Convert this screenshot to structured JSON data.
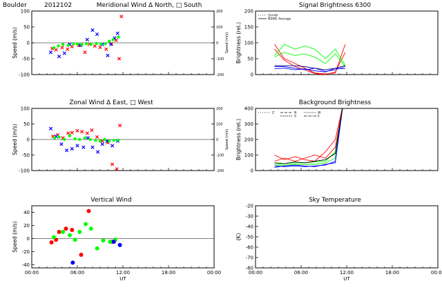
{
  "header": {
    "location": "Boulder",
    "date_code": "2012102"
  },
  "chart_data": [
    {
      "id": "meridional",
      "type": "scatter",
      "title": "Meridional Wind  ∆ North, □ South",
      "ylabel": "Speed (m/s)",
      "y2label": "Speed (m/s)",
      "ylim": [
        -100,
        100
      ],
      "yticks": [
        -100,
        -50,
        0,
        50,
        100
      ],
      "y2lim": [
        -200,
        200
      ],
      "y2ticks": [
        -200,
        -100,
        0,
        100,
        200
      ],
      "xlim": [
        0,
        24
      ],
      "xticks": [],
      "series": [
        {
          "color": "#ff0000",
          "marker": "cross",
          "points": [
            [
              2.7,
              -18
            ],
            [
              3.2,
              -22
            ],
            [
              4.0,
              -15
            ],
            [
              4.7,
              -20
            ],
            [
              5.3,
              -12
            ],
            [
              6.2,
              -8
            ],
            [
              7.0,
              -30
            ],
            [
              7.6,
              -5
            ],
            [
              8.3,
              -10
            ],
            [
              9.0,
              -14
            ],
            [
              9.8,
              -20
            ],
            [
              10.5,
              -3
            ],
            [
              11.1,
              8
            ],
            [
              11.5,
              -50
            ],
            [
              11.8,
              83
            ]
          ]
        },
        {
          "color": "#0000ff",
          "marker": "cross",
          "points": [
            [
              2.5,
              -30
            ],
            [
              3.6,
              -43
            ],
            [
              4.3,
              -33
            ],
            [
              5.0,
              -5
            ],
            [
              6.4,
              -8
            ],
            [
              7.3,
              10
            ],
            [
              8.0,
              40
            ],
            [
              8.6,
              27
            ],
            [
              9.3,
              -5
            ],
            [
              10.0,
              -40
            ],
            [
              10.4,
              -5
            ],
            [
              10.9,
              15
            ],
            [
              11.3,
              30
            ]
          ]
        },
        {
          "color": "#00ff00",
          "marker": "dot",
          "points": [
            [
              2.9,
              -15
            ],
            [
              3.5,
              -10
            ],
            [
              4.1,
              -5
            ],
            [
              4.8,
              -8
            ],
            [
              5.5,
              -3
            ],
            [
              6.0,
              -4
            ],
            [
              6.6,
              -6
            ],
            [
              7.2,
              -3
            ],
            [
              7.8,
              -5
            ],
            [
              8.5,
              -2
            ],
            [
              9.1,
              -4
            ],
            [
              9.7,
              -3
            ],
            [
              10.2,
              5
            ],
            [
              10.7,
              10
            ],
            [
              11.4,
              18
            ]
          ]
        }
      ]
    },
    {
      "id": "zonal",
      "type": "scatter",
      "title": "Zonal Wind     ∆ East, □ West",
      "ylabel": "Speed (m/s)",
      "y2label": "Speed (m/s)",
      "ylim": [
        -100,
        100
      ],
      "yticks": [
        -100,
        -50,
        0,
        50,
        100
      ],
      "y2lim": [
        -200,
        200
      ],
      "y2ticks": [
        -200,
        -100,
        0,
        100,
        200
      ],
      "xlim": [
        0,
        24
      ],
      "xticks": [],
      "series": [
        {
          "color": "#ff0000",
          "marker": "cross",
          "points": [
            [
              2.8,
              10
            ],
            [
              3.4,
              15
            ],
            [
              4.1,
              5
            ],
            [
              4.8,
              20
            ],
            [
              5.3,
              22
            ],
            [
              6.0,
              28
            ],
            [
              6.6,
              25
            ],
            [
              7.3,
              20
            ],
            [
              7.9,
              30
            ],
            [
              8.6,
              8
            ],
            [
              9.3,
              -5
            ],
            [
              10.0,
              -10
            ],
            [
              10.6,
              -80
            ],
            [
              11.2,
              -95
            ],
            [
              11.6,
              45
            ]
          ]
        },
        {
          "color": "#0000ff",
          "marker": "cross",
          "points": [
            [
              2.5,
              35
            ],
            [
              3.2,
              10
            ],
            [
              3.9,
              -15
            ],
            [
              4.6,
              -35
            ],
            [
              5.3,
              -30
            ],
            [
              6.0,
              -20
            ],
            [
              6.8,
              -25
            ],
            [
              7.4,
              5
            ],
            [
              8.0,
              -25
            ],
            [
              8.7,
              -40
            ],
            [
              9.3,
              -15
            ],
            [
              9.9,
              -5
            ],
            [
              10.6,
              -20
            ],
            [
              11.3,
              -5
            ]
          ]
        },
        {
          "color": "#00ff00",
          "marker": "dot",
          "points": [
            [
              3.0,
              5
            ],
            [
              3.6,
              8
            ],
            [
              4.3,
              0
            ],
            [
              5.0,
              12
            ],
            [
              5.7,
              2
            ],
            [
              6.3,
              0
            ],
            [
              7.0,
              5
            ],
            [
              7.7,
              0
            ],
            [
              8.4,
              -3
            ],
            [
              9.0,
              -5
            ],
            [
              9.6,
              0
            ],
            [
              10.2,
              -5
            ],
            [
              10.8,
              -3
            ],
            [
              11.4,
              -2
            ]
          ]
        }
      ]
    },
    {
      "id": "vertical",
      "type": "scatter",
      "title": "Vertical Wind",
      "ylabel": "Speed (m/s)",
      "ylim": [
        -45,
        50
      ],
      "yticks": [
        -40,
        -20,
        0,
        20,
        40
      ],
      "xlim": [
        0,
        24
      ],
      "xticks": [
        "00:00",
        "06:00",
        "12:00",
        "18:00",
        "00:00"
      ],
      "xlabel": "UT",
      "series": [
        {
          "color": "#ff0000",
          "marker": "dot",
          "points": [
            [
              2.6,
              -6
            ],
            [
              3.2,
              -2
            ],
            [
              3.6,
              10
            ],
            [
              4.5,
              15
            ],
            [
              5.3,
              13
            ],
            [
              6.5,
              -25
            ],
            [
              7.5,
              42
            ],
            [
              10.6,
              -5
            ]
          ]
        },
        {
          "color": "#00ff00",
          "marker": "dot",
          "points": [
            [
              2.9,
              2
            ],
            [
              4.1,
              10
            ],
            [
              5.0,
              5
            ],
            [
              5.7,
              -2
            ],
            [
              6.3,
              10
            ],
            [
              7.1,
              22
            ],
            [
              7.8,
              15
            ],
            [
              8.6,
              -15
            ],
            [
              9.4,
              -3
            ],
            [
              10.3,
              -5
            ],
            [
              11.0,
              -2
            ]
          ]
        },
        {
          "color": "#0000ff",
          "marker": "dot",
          "points": [
            [
              5.4,
              -37
            ],
            [
              10.8,
              -5
            ],
            [
              11.6,
              -10
            ]
          ]
        }
      ]
    },
    {
      "id": "signal",
      "type": "line",
      "title": "Signal Brightness       6300",
      "ylabel": "Brightness (rel.)",
      "ylim": [
        0,
        200
      ],
      "yticks": [
        0,
        50,
        100,
        150,
        200
      ],
      "xlim": [
        0,
        24
      ],
      "xticks": [],
      "legend": [
        "Zenith",
        "NSWE Average"
      ],
      "series": [
        {
          "color": "#ff0000",
          "points": [
            [
              2.5,
              95
            ],
            [
              3.8,
              50
            ],
            [
              5.2,
              35
            ],
            [
              6.5,
              20
            ],
            [
              7.8,
              5
            ],
            [
              9.2,
              2
            ],
            [
              10.5,
              5
            ],
            [
              11.8,
              95
            ]
          ]
        },
        {
          "color": "#ff0000",
          "points": [
            [
              2.5,
              80
            ],
            [
              3.8,
              45
            ],
            [
              5.2,
              25
            ],
            [
              6.5,
              15
            ],
            [
              7.8,
              3
            ],
            [
              9.2,
              0
            ],
            [
              10.5,
              8
            ],
            [
              11.8,
              70
            ]
          ]
        },
        {
          "color": "#00ff00",
          "points": [
            [
              2.5,
              60
            ],
            [
              3.8,
              95
            ],
            [
              5.2,
              80
            ],
            [
              6.5,
              90
            ],
            [
              7.8,
              80
            ],
            [
              9.2,
              50
            ],
            [
              10.5,
              80
            ],
            [
              11.8,
              30
            ]
          ]
        },
        {
          "color": "#00ff00",
          "points": [
            [
              2.5,
              55
            ],
            [
              3.8,
              70
            ],
            [
              5.2,
              60
            ],
            [
              6.5,
              65
            ],
            [
              7.8,
              55
            ],
            [
              9.2,
              35
            ],
            [
              10.5,
              65
            ],
            [
              11.8,
              25
            ]
          ]
        },
        {
          "color": "#0000ff",
          "points": [
            [
              2.5,
              25
            ],
            [
              3.8,
              25
            ],
            [
              5.2,
              20
            ],
            [
              6.5,
              15
            ],
            [
              7.8,
              20
            ],
            [
              9.2,
              10
            ],
            [
              10.5,
              15
            ],
            [
              11.8,
              25
            ]
          ]
        },
        {
          "color": "#0000ff",
          "points": [
            [
              2.5,
              18
            ],
            [
              3.8,
              20
            ],
            [
              5.2,
              15
            ],
            [
              6.5,
              18
            ],
            [
              7.8,
              12
            ],
            [
              9.2,
              8
            ],
            [
              10.5,
              20
            ],
            [
              11.8,
              18
            ]
          ]
        },
        {
          "color": "#000080",
          "points": [
            [
              2.5,
              28
            ],
            [
              3.8,
              28
            ],
            [
              5.2,
              28
            ],
            [
              6.5,
              25
            ],
            [
              7.8,
              20
            ],
            [
              9.2,
              15
            ],
            [
              10.5,
              20
            ],
            [
              11.8,
              28
            ]
          ]
        }
      ]
    },
    {
      "id": "background",
      "type": "line",
      "title": "Background Brightness",
      "ylabel": "Brightness (rel.)",
      "ylim": [
        0,
        400
      ],
      "yticks": [
        0,
        100,
        200,
        300,
        400
      ],
      "xlim": [
        0,
        24
      ],
      "xticks": [],
      "legend": [
        "Z",
        "N",
        "S",
        "W",
        "E"
      ],
      "series": [
        {
          "color": "#ff0000",
          "points": [
            [
              2.5,
              100
            ],
            [
              3.8,
              70
            ],
            [
              5.2,
              90
            ],
            [
              6.5,
              70
            ],
            [
              7.8,
              60
            ],
            [
              9.2,
              120
            ],
            [
              10.5,
              200
            ],
            [
              11.5,
              420
            ]
          ]
        },
        {
          "color": "#ff0000",
          "points": [
            [
              2.5,
              60
            ],
            [
              3.8,
              80
            ],
            [
              5.2,
              60
            ],
            [
              6.5,
              80
            ],
            [
              7.8,
              100
            ],
            [
              9.2,
              80
            ],
            [
              10.5,
              150
            ],
            [
              11.5,
              420
            ]
          ]
        },
        {
          "color": "#00ff00",
          "points": [
            [
              2.5,
              40
            ],
            [
              3.8,
              45
            ],
            [
              5.2,
              50
            ],
            [
              6.5,
              50
            ],
            [
              7.8,
              55
            ],
            [
              9.2,
              60
            ],
            [
              10.5,
              120
            ],
            [
              11.5,
              420
            ]
          ]
        },
        {
          "color": "#00ff00",
          "points": [
            [
              2.5,
              30
            ],
            [
              3.8,
              35
            ],
            [
              5.2,
              40
            ],
            [
              6.5,
              40
            ],
            [
              7.8,
              40
            ],
            [
              9.2,
              50
            ],
            [
              10.5,
              80
            ],
            [
              11.5,
              420
            ]
          ]
        },
        {
          "color": "#0000ff",
          "points": [
            [
              2.5,
              30
            ],
            [
              3.8,
              25
            ],
            [
              5.2,
              30
            ],
            [
              6.5,
              25
            ],
            [
              7.8,
              30
            ],
            [
              9.2,
              35
            ],
            [
              10.5,
              60
            ],
            [
              11.5,
              420
            ]
          ]
        },
        {
          "color": "#0000ff",
          "points": [
            [
              2.5,
              20
            ],
            [
              3.8,
              30
            ],
            [
              5.2,
              35
            ],
            [
              6.5,
              30
            ],
            [
              7.8,
              25
            ],
            [
              9.2,
              40
            ],
            [
              10.5,
              50
            ],
            [
              11.5,
              420
            ]
          ]
        },
        {
          "color": "#000000",
          "points": [
            [
              2.5,
              50
            ],
            [
              3.8,
              45
            ],
            [
              5.2,
              55
            ],
            [
              6.5,
              50
            ],
            [
              7.8,
              60
            ],
            [
              9.2,
              70
            ],
            [
              10.5,
              110
            ],
            [
              11.5,
              420
            ]
          ]
        }
      ]
    },
    {
      "id": "sky",
      "type": "line",
      "title": "Sky Temperature",
      "ylabel": "(K)",
      "ylim": [
        -80,
        -20
      ],
      "yticks": [
        -80,
        -70,
        -60,
        -50,
        -40,
        -30,
        -20
      ],
      "xlim": [
        0,
        24
      ],
      "xticks": [
        "00:00",
        "06:00",
        "12:00",
        "18:00",
        "00:00"
      ],
      "xlabel": "UT",
      "series": []
    }
  ]
}
